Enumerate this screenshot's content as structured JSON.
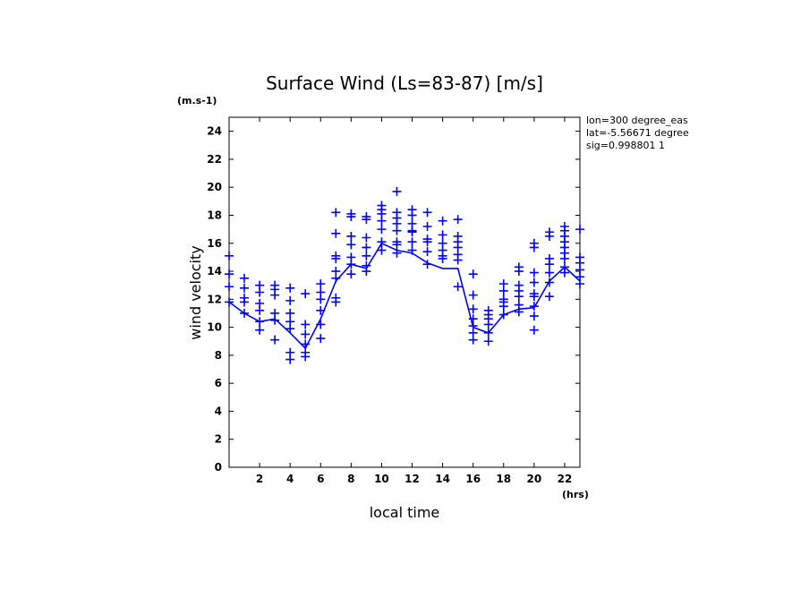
{
  "chart_data": {
    "type": "scatter",
    "title": "Surface Wind  (Ls=83-87) [m/s]",
    "xlabel": "local time",
    "ylabel": "wind velocity",
    "x_unit": "(hrs)",
    "y_unit": "(m.s-1)",
    "xlim": [
      0,
      23
    ],
    "ylim": [
      0,
      25
    ],
    "x_ticks": [
      2,
      4,
      6,
      8,
      10,
      12,
      14,
      16,
      18,
      20,
      22
    ],
    "y_ticks": [
      0,
      2,
      4,
      6,
      8,
      10,
      12,
      14,
      16,
      18,
      20,
      22,
      24
    ],
    "info_lines": [
      "lon=300 degree_eas",
      "lat=-5.56671 degree",
      "sig=0.998801 1"
    ],
    "color": "#0000ff",
    "mean_line": {
      "x": [
        0,
        1,
        2,
        3,
        4,
        5,
        6,
        7,
        8,
        9,
        10,
        11,
        12,
        13,
        14,
        15,
        16,
        17,
        18,
        19,
        20,
        21,
        22,
        23
      ],
      "y": [
        11.8,
        11.0,
        10.4,
        10.6,
        9.6,
        8.5,
        10.6,
        13.3,
        14.5,
        14.2,
        16.0,
        15.5,
        15.3,
        14.6,
        14.2,
        14.2,
        10.0,
        9.6,
        10.9,
        11.3,
        11.4,
        13.3,
        14.3,
        13.3
      ]
    },
    "scatter_points": [
      {
        "x": 0,
        "y": [
          11.8,
          12.9,
          13.8,
          15.1
        ]
      },
      {
        "x": 1,
        "y": [
          11.0,
          11.8,
          12.1,
          12.8,
          13.5
        ]
      },
      {
        "x": 2,
        "y": [
          9.8,
          10.4,
          11.2,
          11.7,
          12.5,
          13.0
        ]
      },
      {
        "x": 3,
        "y": [
          9.1,
          10.5,
          11.0,
          12.3,
          12.7,
          13.0
        ]
      },
      {
        "x": 4,
        "y": [
          7.7,
          8.2,
          9.9,
          10.4,
          11.0,
          11.9,
          12.8
        ]
      },
      {
        "x": 5,
        "y": [
          7.9,
          8.2,
          8.8,
          9.5,
          10.2,
          12.4
        ]
      },
      {
        "x": 6,
        "y": [
          9.2,
          10.2,
          11.2,
          12.0,
          12.5,
          13.1
        ]
      },
      {
        "x": 7,
        "y": [
          11.8,
          12.1,
          13.5,
          14.0,
          14.9,
          15.1,
          16.7,
          18.2
        ]
      },
      {
        "x": 8,
        "y": [
          13.8,
          14.5,
          15.0,
          15.9,
          16.5,
          17.9,
          18.1
        ]
      },
      {
        "x": 9,
        "y": [
          14.0,
          14.4,
          15.1,
          15.7,
          16.4,
          17.7,
          17.9
        ]
      },
      {
        "x": 10,
        "y": [
          15.5,
          16.1,
          17.0,
          17.6,
          18.1,
          18.4,
          18.7
        ]
      },
      {
        "x": 11,
        "y": [
          15.3,
          15.9,
          16.1,
          16.9,
          17.4,
          17.8,
          18.2,
          19.7
        ]
      },
      {
        "x": 12,
        "y": [
          15.5,
          16.1,
          16.8,
          16.9,
          17.4,
          18.0,
          18.4
        ]
      },
      {
        "x": 13,
        "y": [
          14.5,
          15.4,
          16.1,
          16.3,
          17.2,
          18.2
        ]
      },
      {
        "x": 14,
        "y": [
          14.9,
          15.1,
          15.5,
          16.0,
          16.6,
          17.6
        ]
      },
      {
        "x": 15,
        "y": [
          12.9,
          14.8,
          15.2,
          15.7,
          16.1,
          16.5,
          17.7
        ]
      },
      {
        "x": 16,
        "y": [
          9.1,
          9.6,
          10.1,
          10.6,
          11.3,
          12.3,
          13.8
        ]
      },
      {
        "x": 17,
        "y": [
          9.0,
          9.6,
          10.2,
          10.6,
          10.9,
          11.2
        ]
      },
      {
        "x": 18,
        "y": [
          10.9,
          11.5,
          11.8,
          12.0,
          12.6,
          13.1
        ]
      },
      {
        "x": 19,
        "y": [
          11.1,
          11.6,
          12.2,
          12.6,
          13.0,
          14.0,
          14.3
        ]
      },
      {
        "x": 20,
        "y": [
          9.8,
          10.8,
          11.5,
          12.2,
          12.4,
          13.2,
          13.9,
          15.7,
          16.0
        ]
      },
      {
        "x": 21,
        "y": [
          12.2,
          13.2,
          13.9,
          14.5,
          14.9,
          16.5,
          16.8
        ]
      },
      {
        "x": 22,
        "y": [
          13.9,
          14.3,
          14.9,
          15.3,
          15.7,
          16.1,
          16.5,
          16.9,
          17.2
        ]
      },
      {
        "x": 23,
        "y": [
          13.1,
          13.6,
          14.1,
          14.6,
          15.0,
          17.0
        ]
      }
    ]
  }
}
